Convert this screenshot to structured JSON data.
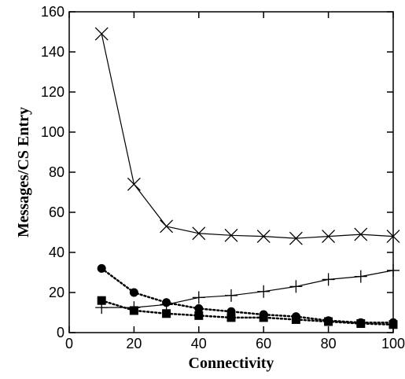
{
  "chart_data": {
    "type": "line",
    "title": "",
    "xlabel": "Connectivity",
    "ylabel": "Messages/CS Entry",
    "xlim": [
      0,
      100
    ],
    "ylim": [
      0,
      160
    ],
    "xticks": [
      0,
      20,
      40,
      60,
      80,
      100
    ],
    "yticks": [
      0,
      20,
      40,
      60,
      80,
      100,
      120,
      140,
      160
    ],
    "grid": false,
    "legend": "none",
    "x": [
      10,
      20,
      30,
      40,
      50,
      60,
      70,
      80,
      90,
      100
    ],
    "series": [
      {
        "marker": "x",
        "line": "solid",
        "color": "#000000",
        "values": [
          149,
          74,
          53,
          49.5,
          48.5,
          48,
          47,
          48,
          49,
          48
        ]
      },
      {
        "marker": "plus",
        "line": "solid",
        "color": "#000000",
        "values": [
          12.5,
          12.5,
          14,
          17.5,
          18.5,
          20.5,
          23,
          26.5,
          28,
          31
        ]
      },
      {
        "marker": "circle",
        "line": "dotted",
        "color": "#000000",
        "values": [
          32,
          20,
          15,
          12,
          10.5,
          9,
          8,
          6,
          5,
          5
        ]
      },
      {
        "marker": "square",
        "line": "dotted",
        "color": "#000000",
        "values": [
          16,
          11,
          9.5,
          8.5,
          7.5,
          7.5,
          6.5,
          5.5,
          4.5,
          4
        ]
      }
    ]
  }
}
